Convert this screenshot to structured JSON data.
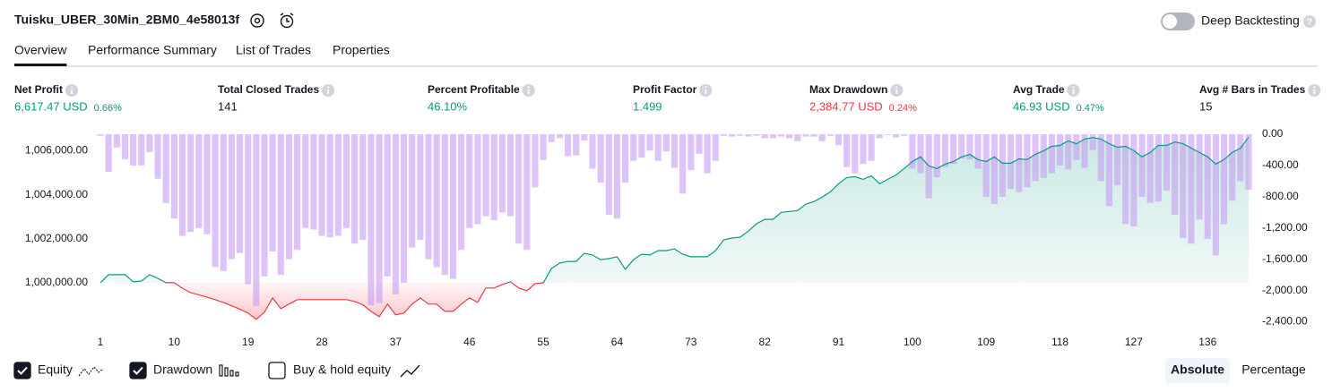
{
  "header": {
    "title": "Tuisku_UBER_30Min_2BM0_4e58013f",
    "toggle": "Deep Backtesting",
    "toggle_on": false
  },
  "tabs": [
    "Overview",
    "Performance Summary",
    "List of Trades",
    "Properties"
  ],
  "active_tab": 0,
  "metrics": [
    {
      "label": "Net Profit",
      "value": "6,617.47 USD",
      "pct": "0.66%",
      "color": "#089981"
    },
    {
      "label": "Total Closed Trades",
      "value": "141",
      "color": "#131722"
    },
    {
      "label": "Percent Profitable",
      "value": "46.10%",
      "color": "#089981"
    },
    {
      "label": "Profit Factor",
      "value": "1.499",
      "color": "#089981"
    },
    {
      "label": "Max Drawdown",
      "value": "2,384.77 USD",
      "pct": "0.24%",
      "color": "#f23645"
    },
    {
      "label": "Avg Trade",
      "value": "46.93 USD",
      "pct": "0.47%",
      "color": "#089981"
    },
    {
      "label": "Avg # Bars in Trades",
      "value": "15",
      "color": "#131722"
    }
  ],
  "chart_data": {
    "type": "line",
    "x": [
      1,
      2,
      3,
      4,
      5,
      6,
      7,
      8,
      9,
      10,
      11,
      12,
      13,
      14,
      15,
      16,
      17,
      18,
      19,
      20,
      21,
      22,
      23,
      24,
      25,
      26,
      27,
      28,
      29,
      30,
      31,
      32,
      33,
      34,
      35,
      36,
      37,
      38,
      39,
      40,
      41,
      42,
      43,
      44,
      45,
      46,
      47,
      48,
      49,
      50,
      51,
      52,
      53,
      54,
      55,
      56,
      57,
      58,
      59,
      60,
      61,
      62,
      63,
      64,
      65,
      66,
      67,
      68,
      69,
      70,
      71,
      72,
      73,
      74,
      75,
      76,
      77,
      78,
      79,
      80,
      81,
      82,
      83,
      84,
      85,
      86,
      87,
      88,
      89,
      90,
      91,
      92,
      93,
      94,
      95,
      96,
      97,
      98,
      99,
      100,
      101,
      102,
      103,
      104,
      105,
      106,
      107,
      108,
      109,
      110,
      111,
      112,
      113,
      114,
      115,
      116,
      117,
      118,
      119,
      120,
      121,
      122,
      123,
      124,
      125,
      126,
      127,
      128,
      129,
      130,
      131,
      132,
      133,
      134,
      135,
      136,
      137,
      138,
      139,
      140,
      141
    ],
    "xlim": [
      1,
      141
    ],
    "xticks": [
      1,
      10,
      19,
      28,
      37,
      46,
      55,
      64,
      73,
      82,
      91,
      100,
      109,
      118,
      127,
      136
    ],
    "ylim": [
      997800,
      1006750
    ],
    "yticks": [
      {
        "value": 1000000,
        "label": "1,000,000.00"
      },
      {
        "value": 1002000,
        "label": "1,002,000.00"
      },
      {
        "value": 1004000,
        "label": "1,004,000.00"
      },
      {
        "value": 1006000,
        "label": "1,006,000.00"
      }
    ],
    "y2lim": [
      -2520,
      0
    ],
    "y2ticks": [
      {
        "value": 0,
        "label": "0.00"
      },
      {
        "value": -400,
        "label": "-400.00"
      },
      {
        "value": -800,
        "label": "-800.00"
      },
      {
        "value": -1200,
        "label": "-1,200.00"
      },
      {
        "value": -1600,
        "label": "-1,600.00"
      },
      {
        "value": -2000,
        "label": "-2,000.00"
      },
      {
        "value": -2400,
        "label": "-2,400.00"
      }
    ],
    "series": [
      {
        "name": "Equity",
        "color": "#089981",
        "negative_color": "#f23645",
        "visible": true,
        "values": [
          1000000,
          1000365,
          1000365,
          1000365,
          1000040,
          1000080,
          1000365,
          1000200,
          1000000,
          1000000,
          999750,
          999550,
          999450,
          999350,
          999230,
          999100,
          998950,
          998800,
          998620,
          998340,
          998660,
          999310,
          998820,
          999030,
          999230,
          999230,
          999230,
          999230,
          999230,
          999230,
          999230,
          999150,
          999000,
          998700,
          998460,
          999030,
          998540,
          998620,
          999030,
          999310,
          999030,
          999030,
          998700,
          998700,
          999030,
          999310,
          999110,
          999760,
          999760,
          999920,
          1000040,
          999760,
          999640,
          999960,
          1000000,
          1000650,
          1000890,
          1000970,
          1000970,
          1001340,
          1001260,
          1001050,
          1001100,
          1001180,
          1000610,
          1001050,
          1001300,
          1001260,
          1001460,
          1001460,
          1001540,
          1001300,
          1001180,
          1001180,
          1001180,
          1001460,
          1001950,
          1002030,
          1002070,
          1002350,
          1002680,
          1002880,
          1002880,
          1003200,
          1003240,
          1003280,
          1003570,
          1003690,
          1003890,
          1004130,
          1004500,
          1004780,
          1004820,
          1004700,
          1004860,
          1004500,
          1004700,
          1004900,
          1005190,
          1005510,
          1005720,
          1005310,
          1005190,
          1005390,
          1005510,
          1005720,
          1005840,
          1005600,
          1005510,
          1005720,
          1005430,
          1005430,
          1005630,
          1005600,
          1005840,
          1006000,
          1006200,
          1006240,
          1006450,
          1006320,
          1006530,
          1006600,
          1006530,
          1006320,
          1006160,
          1006200,
          1006000,
          1005720,
          1005920,
          1006240,
          1006240,
          1006400,
          1006320,
          1006120,
          1005920,
          1005720,
          1005390,
          1005600,
          1005920,
          1006120,
          1006617.47
        ]
      },
      {
        "name": "Drawdown",
        "color": "#c89bf5",
        "axis": "y2",
        "visible": true,
        "values": [
          -20,
          -480,
          -170,
          -320,
          -400,
          -400,
          -230,
          -570,
          -880,
          -1080,
          -1300,
          -1250,
          -1200,
          -1280,
          -1700,
          -1750,
          -1600,
          -1520,
          -1920,
          -2200,
          -1820,
          -1500,
          -1800,
          -1600,
          -1480,
          -1200,
          -1220,
          -1300,
          -1320,
          -1300,
          -1200,
          -1400,
          -1350,
          -2190,
          -2160,
          -1820,
          -2050,
          -1900,
          -1450,
          -1350,
          -1600,
          -1700,
          -1800,
          -1850,
          -1480,
          -1200,
          -1150,
          -1050,
          -1100,
          -1000,
          -1050,
          -1400,
          -1480,
          -680,
          -330,
          -100,
          -50,
          -280,
          -270,
          -80,
          -440,
          -620,
          -1030,
          -1080,
          -620,
          -340,
          -300,
          -210,
          -340,
          -220,
          -430,
          -760,
          -460,
          -250,
          -500,
          -340,
          -20,
          -30,
          -20,
          -30,
          -20,
          -50,
          -50,
          -30,
          -50,
          -90,
          -30,
          -30,
          -90,
          -20,
          -140,
          -420,
          -500,
          -380,
          -340,
          -50,
          -10,
          -40,
          -20,
          -440,
          -500,
          -820,
          -550,
          -420,
          -380,
          -310,
          -320,
          -440,
          -800,
          -890,
          -800,
          -700,
          -740,
          -680,
          -600,
          -560,
          -500,
          -400,
          -450,
          -330,
          -430,
          -200,
          -600,
          -920,
          -650,
          -1150,
          -1180,
          -800,
          -880,
          -860,
          -720,
          -1030,
          -1330,
          -1400,
          -1090,
          -1340,
          -1550,
          -1150,
          -850,
          -600,
          -710
        ]
      }
    ],
    "extra_option": {
      "name": "Buy & hold equity",
      "visible": false
    }
  },
  "scale_buttons": [
    "Absolute",
    "Percentage"
  ],
  "active_scale": 0
}
